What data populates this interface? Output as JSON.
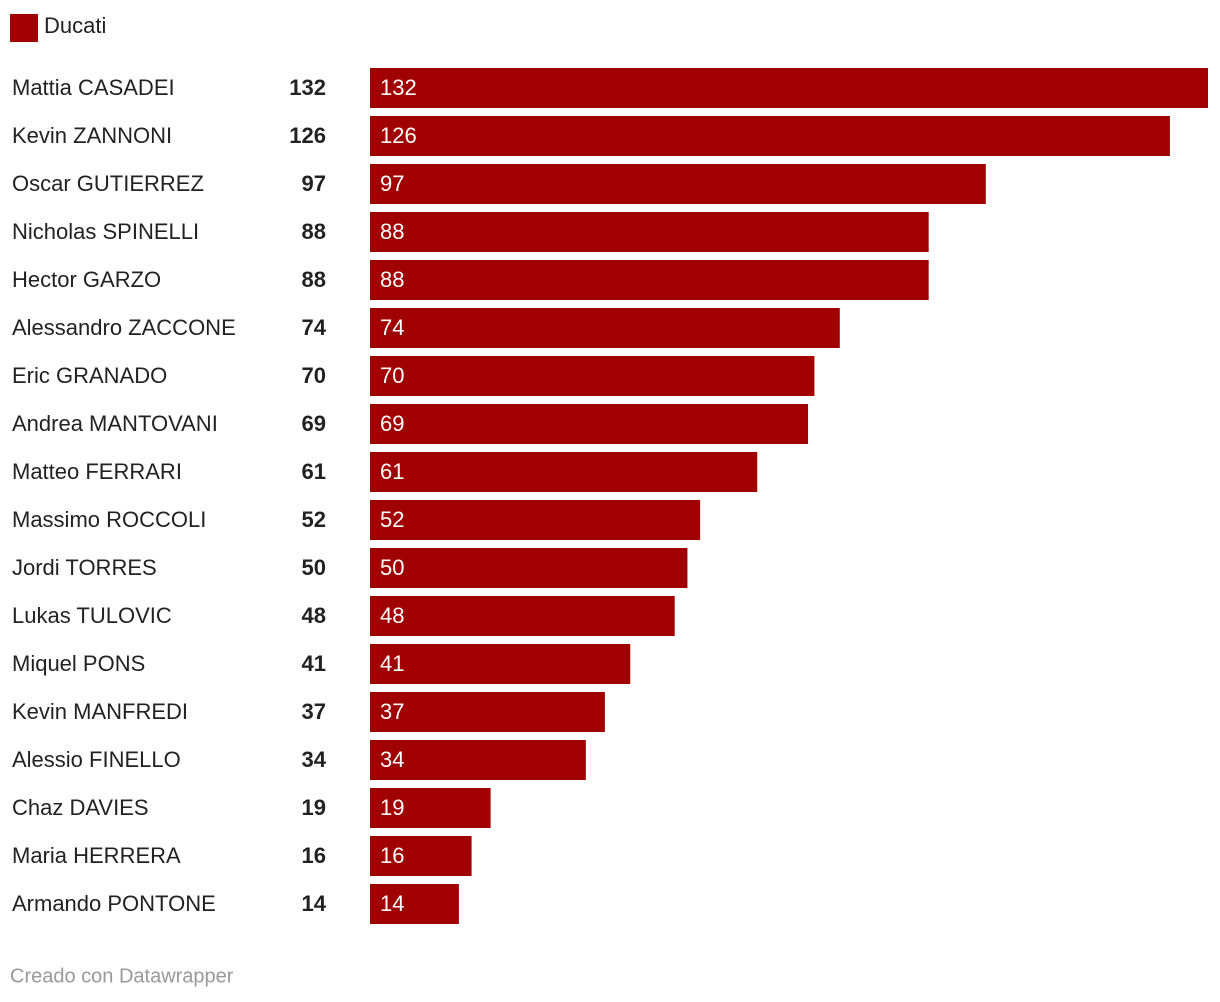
{
  "chart_data": {
    "type": "bar",
    "categories": [
      "Mattia CASADEI",
      "Kevin ZANNONI",
      "Oscar GUTIERREZ",
      "Nicholas SPINELLI",
      "Hector GARZO",
      "Alessandro ZACCONE",
      "Eric GRANADO",
      "Andrea MANTOVANI",
      "Matteo FERRARI",
      "Massimo ROCCOLI",
      "Jordi TORRES",
      "Lukas TULOVIC",
      "Miquel PONS",
      "Kevin MANFREDI",
      "Alessio FINELLO",
      "Chaz DAVIES",
      "Maria HERRERA",
      "Armando PONTONE"
    ],
    "series": [
      {
        "name": "Ducati",
        "color": "#a00000",
        "values": [
          132,
          126,
          97,
          88,
          88,
          74,
          70,
          69,
          61,
          52,
          50,
          48,
          41,
          37,
          34,
          19,
          16,
          14
        ]
      }
    ],
    "credit": "Creado con Datawrapper"
  }
}
